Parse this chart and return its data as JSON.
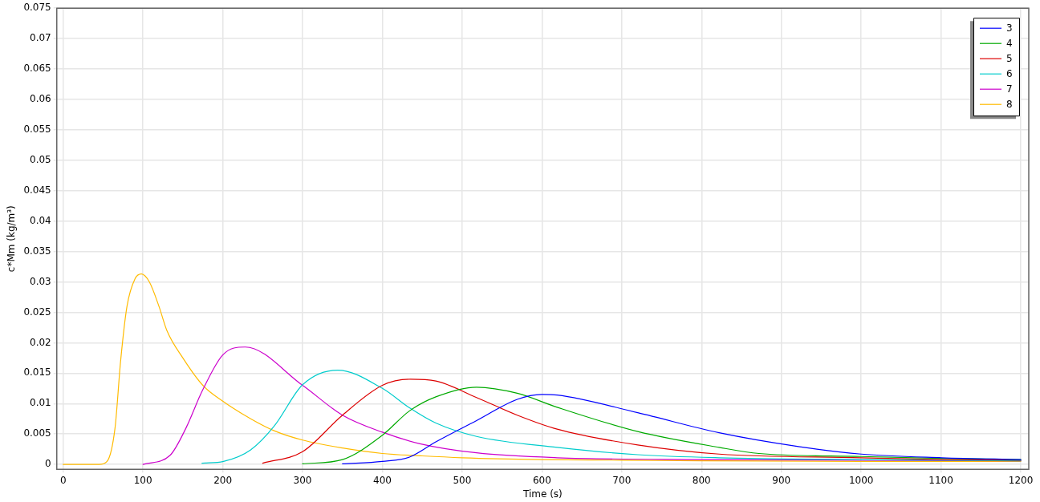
{
  "chart_data": {
    "type": "line",
    "xlabel": "Time (s)",
    "ylabel": "c*Mm (kg/m³)",
    "xlim": [
      -8,
      1210
    ],
    "ylim": [
      -0.0008,
      0.075
    ],
    "xticks": [
      0,
      100,
      200,
      300,
      400,
      500,
      600,
      700,
      800,
      900,
      1000,
      1100,
      1200
    ],
    "yticks": [
      0,
      0.005,
      0.01,
      0.015,
      0.02,
      0.025,
      0.03,
      0.035,
      0.04,
      0.045,
      0.05,
      0.055,
      0.06,
      0.065,
      0.07,
      0.075
    ],
    "grid": true,
    "legend": "top right",
    "marker": "none",
    "line_style": "solid",
    "series": [
      {
        "name": "3",
        "color": "#0000ff",
        "x": [
          350,
          400,
          434,
          467,
          518,
          569,
          600,
          619,
          720,
          822,
          923,
          1000,
          1101,
          1200
        ],
        "values": [
          0.0001,
          0.0005,
          0.0012,
          0.0037,
          0.0072,
          0.0107,
          0.0115,
          0.0114,
          0.0085,
          0.0052,
          0.0029,
          0.0017,
          0.0011,
          0.0008
        ]
      },
      {
        "name": "4",
        "color": "#00aa00",
        "x": [
          300,
          350,
          400,
          434,
          467,
          518,
          569,
          619,
          720,
          822,
          872,
          1000,
          1100,
          1200
        ],
        "values": [
          0.0001,
          0.0008,
          0.0048,
          0.0088,
          0.0111,
          0.0127,
          0.0117,
          0.0094,
          0.0054,
          0.0028,
          0.0018,
          0.0013,
          0.001,
          0.0008
        ]
      },
      {
        "name": "5",
        "color": "#dd0000",
        "x": [
          250,
          300,
          350,
          400,
          435,
          467,
          518,
          569,
          619,
          720,
          822,
          1000,
          1100,
          1200
        ],
        "values": [
          0.0002,
          0.0021,
          0.0081,
          0.013,
          0.014,
          0.0137,
          0.011,
          0.0081,
          0.0058,
          0.0032,
          0.0017,
          0.0011,
          0.0008,
          0.0007
        ]
      },
      {
        "name": "6",
        "color": "#00cccc",
        "x": [
          174,
          201,
          235,
          265,
          300,
          344,
          400,
          434,
          467,
          518,
          619,
          720,
          822,
          1000,
          1200
        ],
        "values": [
          0.0002,
          0.0005,
          0.0024,
          0.0064,
          0.0131,
          0.0155,
          0.0125,
          0.0093,
          0.0068,
          0.0046,
          0.0028,
          0.0016,
          0.0011,
          0.0008,
          0.0006
        ]
      },
      {
        "name": "7",
        "color": "#cc00cc",
        "x": [
          100,
          134,
          154,
          174,
          200,
          228,
          300,
          350,
          400,
          447,
          518,
          619,
          800,
          1000,
          1200
        ],
        "values": [
          0,
          0.0015,
          0.006,
          0.012,
          0.018,
          0.0193,
          0.013,
          0.0081,
          0.0053,
          0.0034,
          0.0019,
          0.0011,
          0.0008,
          0.0007,
          0.0006
        ]
      },
      {
        "name": "8",
        "color": "#ffbb00",
        "x": [
          0,
          45,
          55,
          65,
          72,
          80,
          90,
          98,
          108,
          120,
          130,
          150,
          175,
          200,
          235,
          265,
          300,
          350,
          400,
          450,
          500,
          600,
          700,
          800,
          1000,
          1200
        ],
        "values": [
          0,
          0,
          0.0005,
          0.006,
          0.017,
          0.026,
          0.0305,
          0.0313,
          0.03,
          0.026,
          0.022,
          0.0175,
          0.013,
          0.0104,
          0.0075,
          0.0055,
          0.004,
          0.0027,
          0.0018,
          0.0014,
          0.0011,
          0.0008,
          0.0007,
          0.0006,
          0.0005,
          0.0005
        ]
      }
    ]
  }
}
